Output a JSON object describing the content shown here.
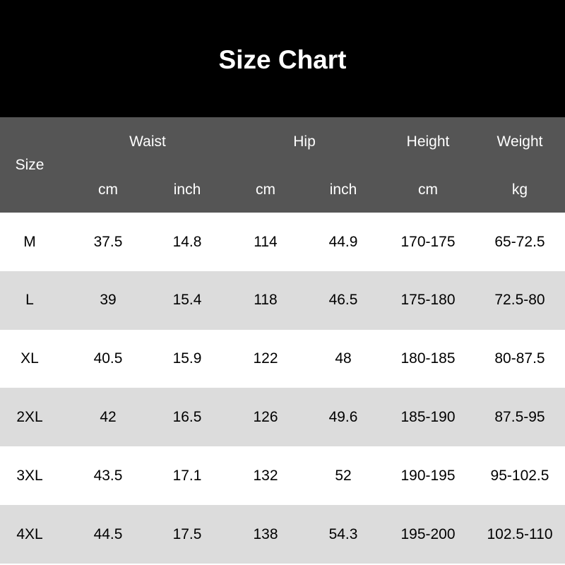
{
  "chart_data": {
    "type": "table",
    "title": "Size Chart",
    "header": {
      "size": "Size",
      "groups": {
        "waist": "Waist",
        "hip": "Hip",
        "height": "Height",
        "weight": "Weight"
      },
      "units": [
        "cm",
        "inch",
        "cm",
        "inch",
        "cm",
        "kg"
      ]
    },
    "rows": [
      [
        "M",
        "37.5",
        "14.8",
        "114",
        "44.9",
        "170-175",
        "65-72.5"
      ],
      [
        "L",
        "39",
        "15.4",
        "118",
        "46.5",
        "175-180",
        "72.5-80"
      ],
      [
        "XL",
        "40.5",
        "15.9",
        "122",
        "48",
        "180-185",
        "80-87.5"
      ],
      [
        "2XL",
        "42",
        "16.5",
        "126",
        "49.6",
        "185-190",
        "87.5-95"
      ],
      [
        "3XL",
        "43.5",
        "17.1",
        "132",
        "52",
        "190-195",
        "95-102.5"
      ],
      [
        "4XL",
        "44.5",
        "17.5",
        "138",
        "54.3",
        "195-200",
        "102.5-110"
      ]
    ],
    "colors": {
      "title_bg": "#000000",
      "header_bg": "#555555",
      "row_alt": "#dcdcdc",
      "row": "#ffffff"
    }
  }
}
